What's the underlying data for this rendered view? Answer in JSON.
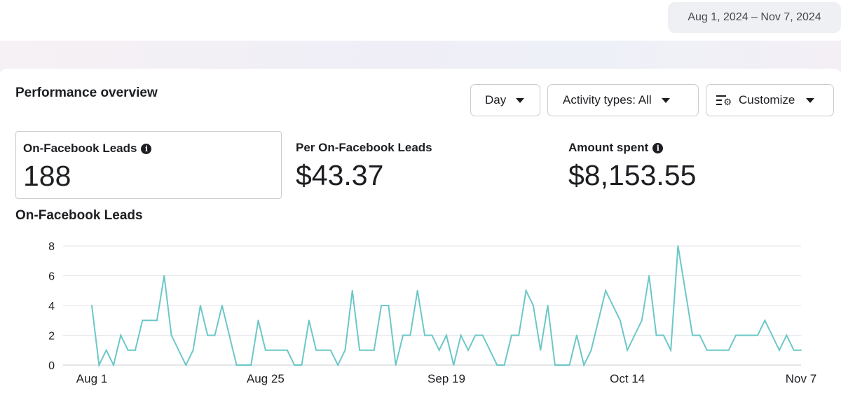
{
  "header": {
    "date_range": "Aug 1, 2024 – Nov 7, 2024"
  },
  "panel": {
    "title": "Performance overview",
    "controls": {
      "day": "Day",
      "activity": "Activity types: All",
      "customize": "Customize"
    }
  },
  "metrics": [
    {
      "label": "On-Facebook Leads",
      "value": "188",
      "info": true
    },
    {
      "label": "Per On-Facebook Leads",
      "value": "$43.37",
      "info": false
    },
    {
      "label": "Amount spent",
      "value": "$8,153.55",
      "info": true
    }
  ],
  "chart_data": {
    "type": "line",
    "title": "On-Facebook Leads",
    "xlabel": "",
    "ylabel": "",
    "ylim": [
      0,
      8
    ],
    "yticks": [
      0,
      2,
      4,
      6,
      8
    ],
    "grid": true,
    "color": "#6cc7c7",
    "x_start": "Aug 1",
    "x_end": "Nov 7",
    "xticks": [
      {
        "label": "Aug 1",
        "index": 0
      },
      {
        "label": "Aug 25",
        "index": 24
      },
      {
        "label": "Sep 19",
        "index": 49
      },
      {
        "label": "Oct 14",
        "index": 74
      },
      {
        "label": "Nov 7",
        "index": 98
      }
    ],
    "values": [
      4,
      0,
      1,
      0,
      2,
      1,
      1,
      3,
      3,
      3,
      6,
      2,
      1,
      0,
      1,
      4,
      2,
      2,
      4,
      2,
      0,
      0,
      0,
      3,
      1,
      1,
      1,
      1,
      0,
      0,
      3,
      1,
      1,
      1,
      0,
      1,
      5,
      1,
      1,
      1,
      4,
      4,
      0,
      2,
      2,
      5,
      2,
      2,
      1,
      2,
      0,
      2,
      1,
      2,
      2,
      1,
      0,
      0,
      2,
      2,
      5,
      4,
      1,
      4,
      0,
      0,
      0,
      2,
      0,
      1,
      3,
      5,
      4,
      3,
      1,
      2,
      3,
      6,
      2,
      2,
      1,
      8,
      5,
      2,
      2,
      1,
      1,
      1,
      1,
      2,
      2,
      2,
      2,
      3,
      2,
      1,
      2,
      1,
      1
    ]
  }
}
